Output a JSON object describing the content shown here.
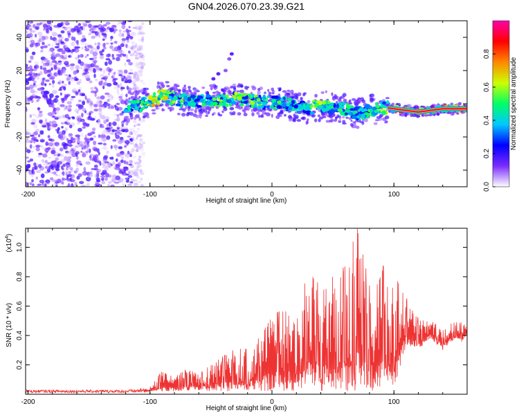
{
  "title": "GN04.2026.070.23.39.G21",
  "chart_data": [
    {
      "type": "heatmap",
      "title": "GN04.2026.070.23.39.G21",
      "xlabel": "Height of straight line (km)",
      "ylabel": "Frequency (Hz)",
      "xlim": [
        -202,
        160
      ],
      "ylim": [
        -50,
        50
      ],
      "x_ticks": [
        -200,
        -100,
        0,
        100
      ],
      "y_ticks": [
        -40,
        -20,
        0,
        20,
        40
      ],
      "colorbar": {
        "label": "Normalized spectral amplitude",
        "range": [
          0,
          1
        ],
        "ticks": [
          0.0,
          0.2,
          0.4,
          0.6,
          0.8
        ],
        "tick_labels": [
          "0.0",
          "0.2",
          "0.4",
          "0.6",
          "0.8"
        ],
        "colors": [
          "#ffffff",
          "#7b2cff",
          "#0000ff",
          "#00c8ff",
          "#00ff66",
          "#ccff00",
          "#ff8800",
          "#ff0000",
          "#ff00aa"
        ]
      },
      "noise_region": {
        "x_range": [
          -202,
          -105
        ],
        "freq_range": [
          -50,
          50
        ],
        "dominant_amplitude": 0.1
      },
      "signal_trace": {
        "x": [
          -120,
          -110,
          -100,
          -90,
          -80,
          -70,
          -60,
          -50,
          -40,
          -30,
          -20,
          -10,
          0,
          10,
          20,
          30,
          40,
          50,
          60,
          70,
          80,
          90,
          100,
          110,
          120,
          130,
          140,
          150,
          160
        ],
        "freq": [
          -1,
          -1,
          1,
          5,
          3,
          2,
          1,
          2,
          2,
          3,
          2,
          1,
          1,
          0,
          -2,
          -3,
          -1,
          -2,
          -3,
          -6,
          -4,
          -2,
          -3,
          -4,
          -5,
          -4,
          -3,
          -3,
          -3
        ],
        "amplitude": [
          0.45,
          0.5,
          0.65,
          0.7,
          0.55,
          0.5,
          0.5,
          0.5,
          0.55,
          0.6,
          0.55,
          0.55,
          0.55,
          0.5,
          0.45,
          0.5,
          0.6,
          0.5,
          0.5,
          0.45,
          0.5,
          0.55,
          0.75,
          0.9,
          0.95,
          0.9,
          0.9,
          0.95,
          0.95
        ]
      },
      "isolated_features": [
        {
          "x": -33,
          "freq": 30,
          "amplitude": 0.15
        },
        {
          "x": -35,
          "freq": 27,
          "amplitude": 0.1
        },
        {
          "x": -44,
          "freq": 18,
          "amplitude": 0.15
        },
        {
          "x": -48,
          "freq": 15,
          "amplitude": 0.15
        },
        {
          "x": -38,
          "freq": 20,
          "amplitude": 0.1
        }
      ]
    },
    {
      "type": "line",
      "xlabel": "Height of straight line (km)",
      "ylabel": "SNR (10 * v/v)",
      "y_multiplier_label": "(x10",
      "y_multiplier_exponent": "4",
      "y_multiplier_close": ")",
      "xlim": [
        -202,
        160
      ],
      "ylim": [
        0,
        1.13
      ],
      "x_ticks": [
        -200,
        -100,
        0,
        100
      ],
      "y_ticks": [
        0.2,
        0.4,
        0.6,
        0.8,
        1.0
      ],
      "color": "#ee3333",
      "envelope": {
        "x": [
          -202,
          -150,
          -120,
          -105,
          -100,
          -90,
          -80,
          -70,
          -60,
          -50,
          -40,
          -30,
          -20,
          -10,
          0,
          10,
          20,
          30,
          40,
          50,
          60,
          70,
          80,
          90,
          100,
          110,
          120,
          130,
          140,
          150,
          155,
          160
        ],
        "peak": [
          0.03,
          0.03,
          0.03,
          0.04,
          0.05,
          0.16,
          0.12,
          0.17,
          0.14,
          0.2,
          0.26,
          0.31,
          0.31,
          0.39,
          0.54,
          0.58,
          0.54,
          0.85,
          0.73,
          0.82,
          0.87,
          1.13,
          0.74,
          0.88,
          0.82,
          0.66,
          0.52,
          0.5,
          0.46,
          0.49,
          0.49,
          0.48
        ],
        "floor": [
          0.01,
          0.01,
          0.01,
          0.01,
          0.02,
          0.02,
          0.02,
          0.02,
          0.02,
          0.02,
          0.02,
          0.02,
          0.02,
          0.02,
          0.02,
          0.02,
          0.02,
          0.02,
          0.02,
          0.02,
          0.02,
          0.02,
          0.02,
          0.03,
          0.03,
          0.32,
          0.3,
          0.38,
          0.3,
          0.38,
          0.35,
          0.4
        ]
      }
    }
  ]
}
